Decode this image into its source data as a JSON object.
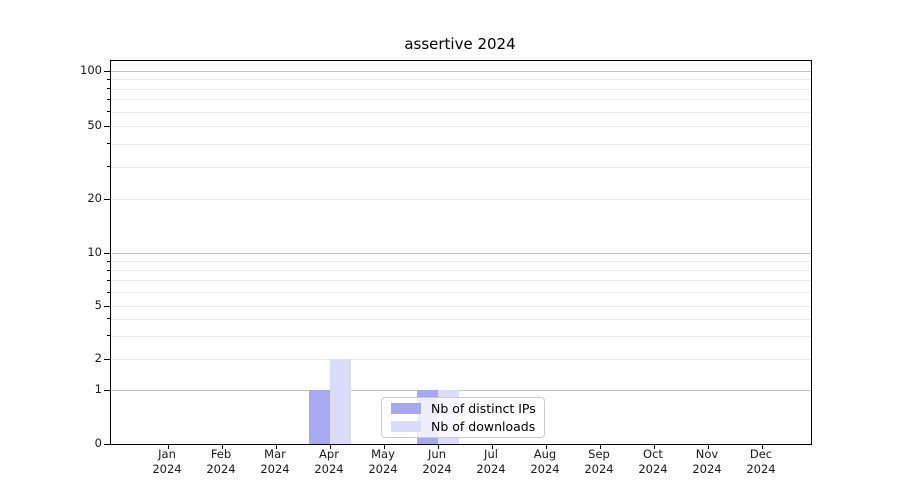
{
  "chart_data": {
    "type": "bar",
    "title": "assertive 2024",
    "months": [
      "Jan",
      "Feb",
      "Mar",
      "Apr",
      "May",
      "Jun",
      "Jul",
      "Aug",
      "Sep",
      "Oct",
      "Nov",
      "Dec"
    ],
    "year": "2024",
    "series": [
      {
        "name": "Nb of distinct IPs",
        "color": "#a8a8f0",
        "values": [
          0,
          0,
          0,
          1,
          0,
          1,
          0,
          0,
          0,
          0,
          0,
          0
        ]
      },
      {
        "name": "Nb of downloads",
        "color": "#dbdbfa",
        "values": [
          0,
          0,
          0,
          2,
          0,
          1,
          0,
          0,
          0,
          0,
          0,
          0
        ]
      }
    ],
    "y_axis": {
      "scale": "symlog",
      "labeled_ticks": [
        0,
        1,
        2,
        5,
        10,
        20,
        50,
        100
      ],
      "major_gridline_values": [
        1,
        10,
        100
      ],
      "minor_gridline_values": [
        3,
        4,
        6,
        7,
        8,
        9,
        30,
        40,
        60,
        70,
        80,
        90
      ],
      "range": [
        0,
        100
      ]
    },
    "grid": true,
    "legend": {
      "entries": [
        "Nb of distinct IPs",
        "Nb of downloads"
      ],
      "position": "lower center"
    },
    "colors": {
      "background": "#ffffff",
      "spine": "#000000",
      "grid_major": "#c4c4c4",
      "grid_minor": "#ebebeb",
      "text": "#1a1a1a"
    }
  }
}
